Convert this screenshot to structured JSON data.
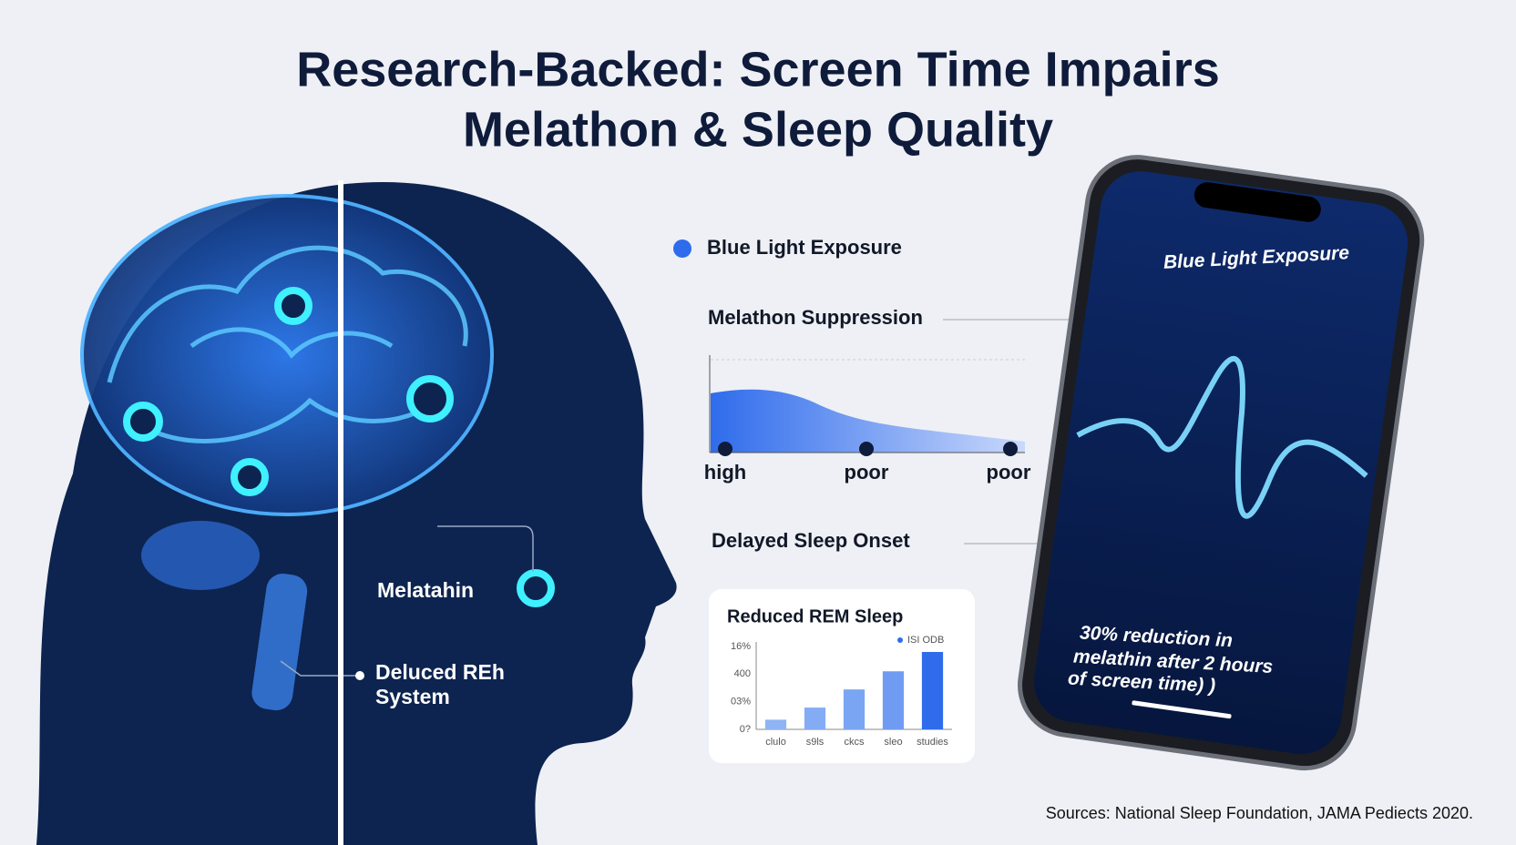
{
  "title": [
    "Research-Backed: Screen Time Impairs",
    "Melathon & Sleep Quality"
  ],
  "head_labels": {
    "melatonin": "Melatahin",
    "rem": [
      "Deluced REh",
      "System"
    ]
  },
  "callouts": {
    "blue_light": "Blue Light Exposure",
    "suppression": "Melathon Suppression",
    "onset": "Delayed Sleep Onset"
  },
  "area_chart": {
    "labels": [
      "high",
      "poor",
      "poor"
    ]
  },
  "rem_chart": {
    "title": "Reduced REM Sleep",
    "legend": "ISI ODB",
    "yticks": [
      "16%",
      "400",
      "03%",
      "0?"
    ],
    "categories": [
      "clulo",
      "s9ls",
      "ckcs",
      "sleo",
      "studies"
    ],
    "values": [
      8,
      18,
      33,
      48,
      64
    ],
    "colors": [
      "#8fb4f5",
      "#84acf4",
      "#7aa5f3",
      "#6f9cf2",
      "#2f6cec"
    ]
  },
  "phone": {
    "title": "Blue Light Exposure",
    "caption": [
      "30% reduction in",
      "melathin after 2 hours",
      "of screen time) )"
    ]
  },
  "source": "Sources: National Sleep Foundation, JAMA Pediects 2020."
}
